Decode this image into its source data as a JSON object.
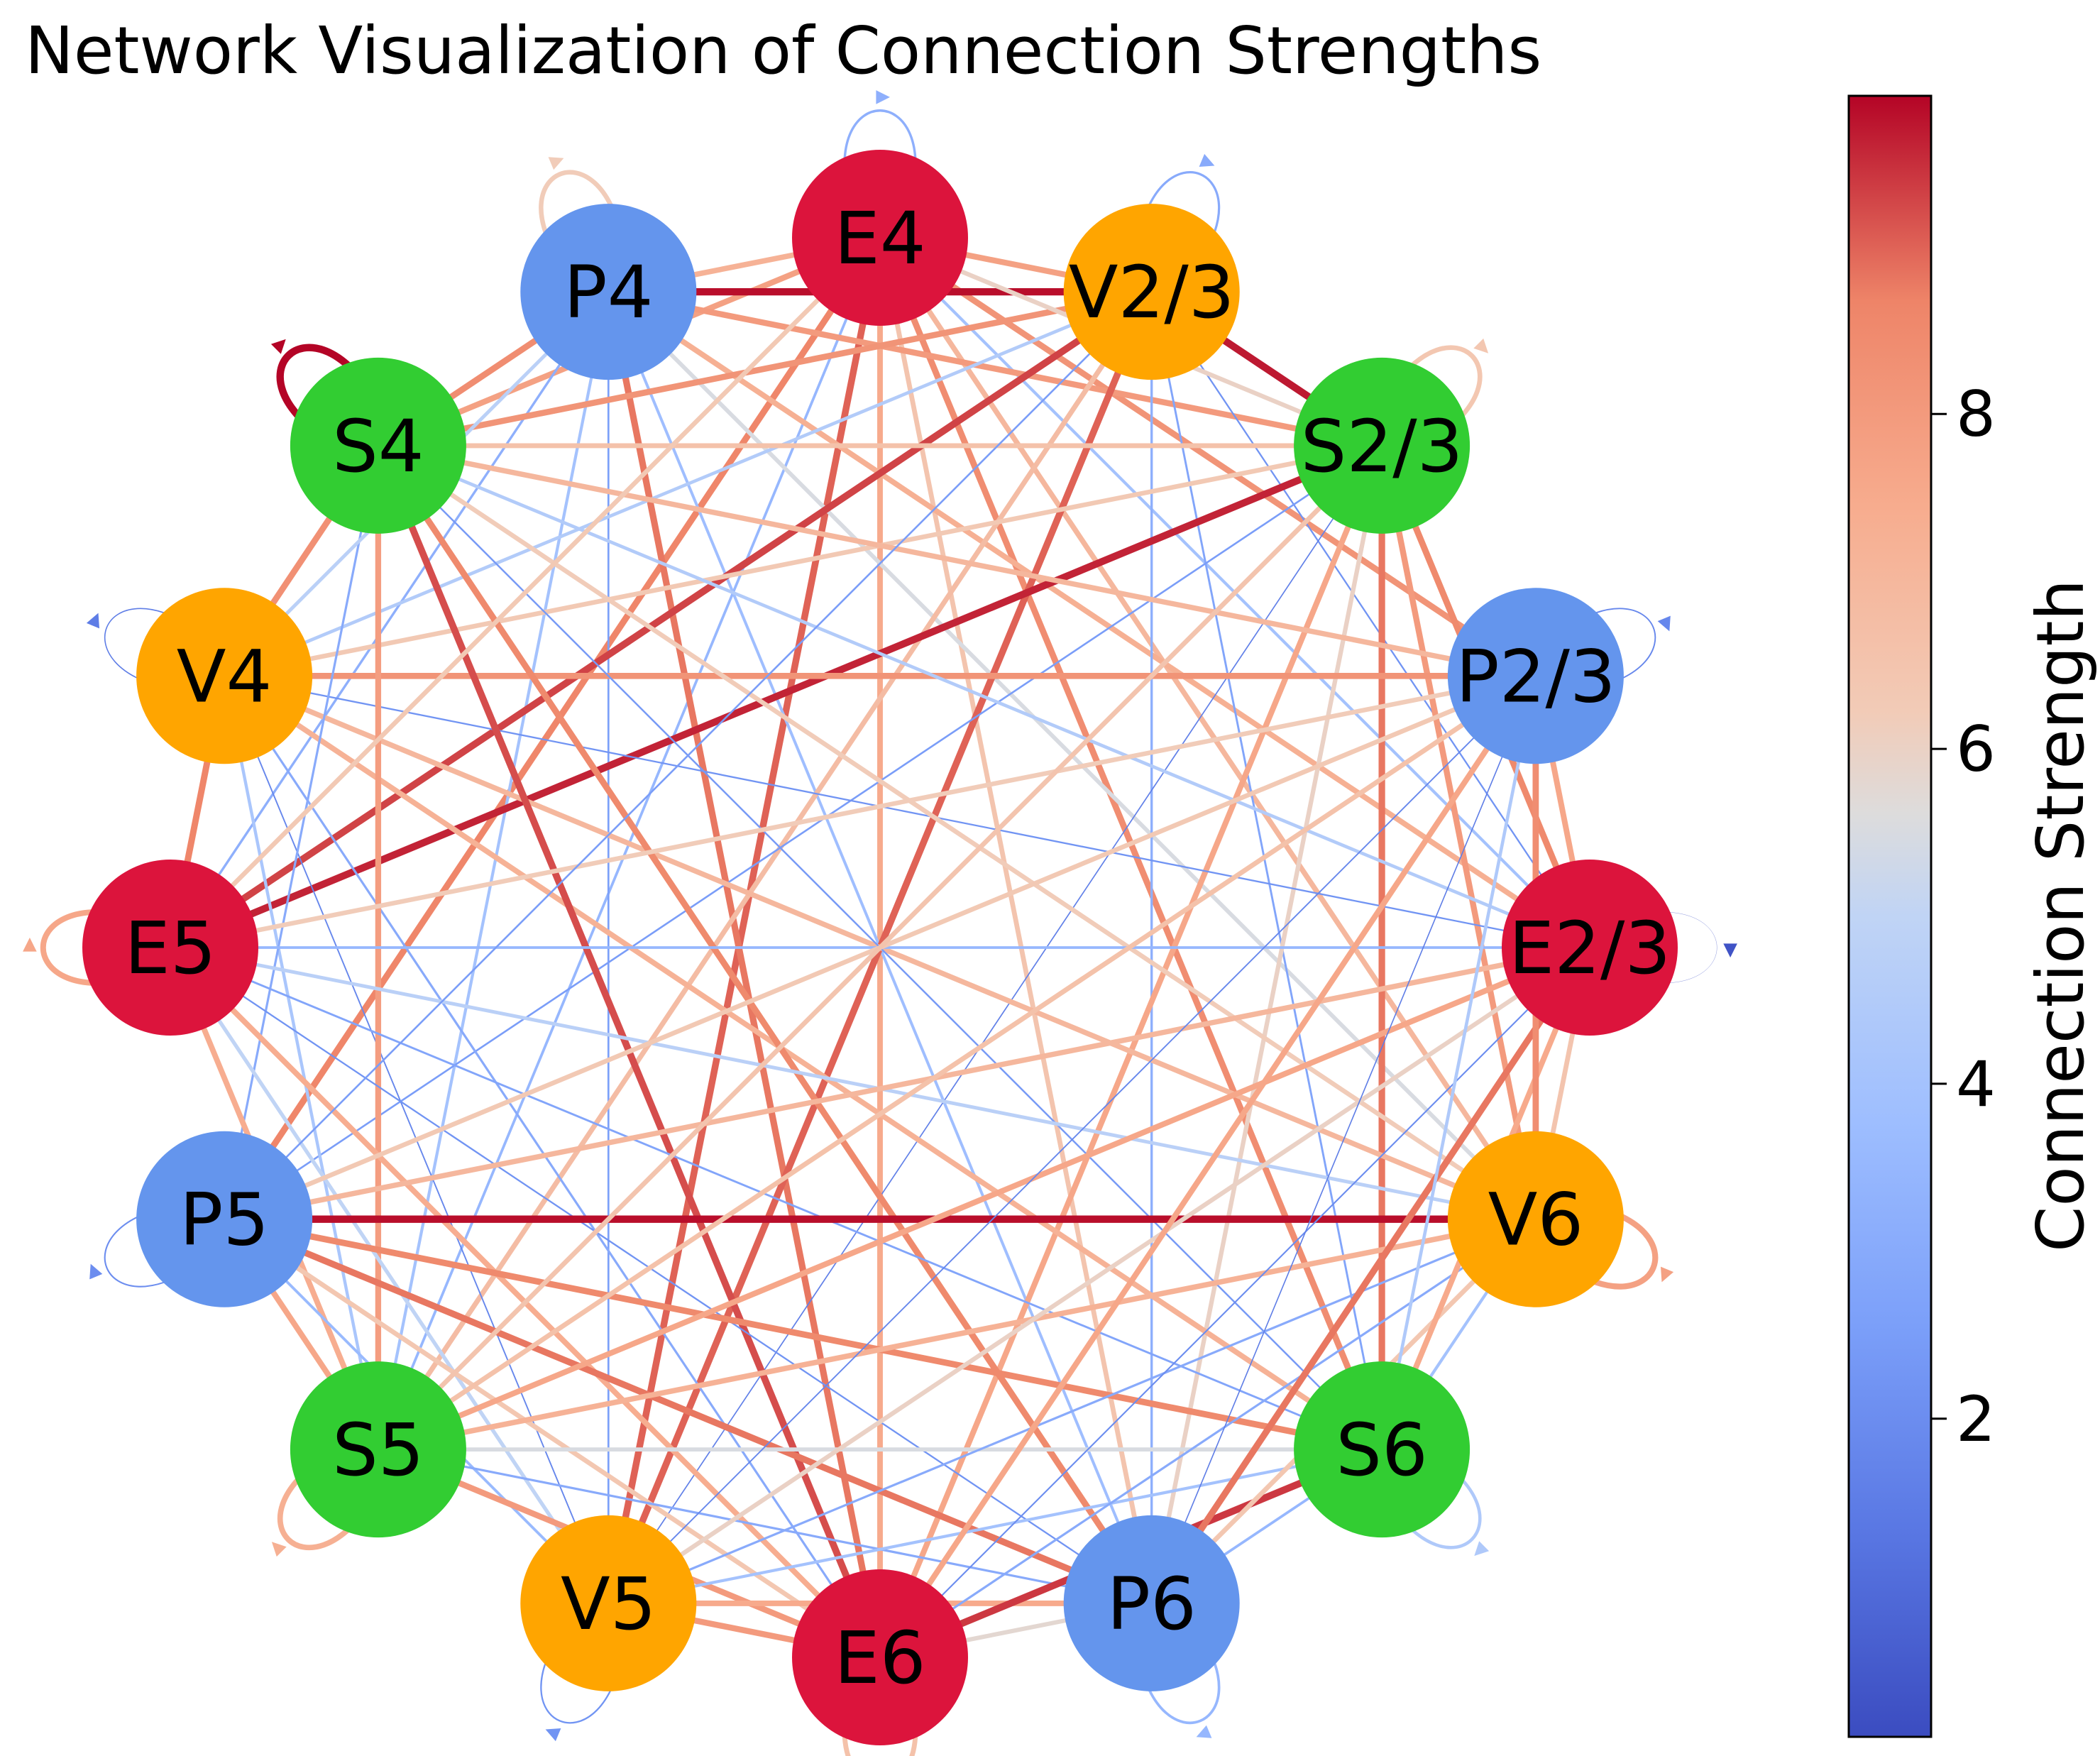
{
  "title": "Network Visualization of Connection Strengths",
  "colorbar": {
    "label": "Connection Strength",
    "min": 0.1,
    "max": 9.9,
    "ticks": [
      2,
      4,
      6,
      8
    ],
    "tick_labels": [
      "2",
      "4",
      "6",
      "8"
    ],
    "colormap": "coolwarm"
  },
  "colors": {
    "E": "#dc143c",
    "P": "#6495ed",
    "V": "#ffa500",
    "S": "#32cd32"
  },
  "nodes": [
    {
      "label": "E4",
      "type": "E"
    },
    {
      "label": "V2/3",
      "type": "V"
    },
    {
      "label": "S2/3",
      "type": "S"
    },
    {
      "label": "P2/3",
      "type": "P"
    },
    {
      "label": "E2/3",
      "type": "E"
    },
    {
      "label": "V6",
      "type": "V"
    },
    {
      "label": "S6",
      "type": "S"
    },
    {
      "label": "P6",
      "type": "P"
    },
    {
      "label": "E6",
      "type": "E"
    },
    {
      "label": "V5",
      "type": "V"
    },
    {
      "label": "S5",
      "type": "S"
    },
    {
      "label": "P5",
      "type": "P"
    },
    {
      "label": "E5",
      "type": "E"
    },
    {
      "label": "V4",
      "type": "V"
    },
    {
      "label": "S4",
      "type": "S"
    },
    {
      "label": "P4",
      "type": "P"
    }
  ],
  "edges": [
    {
      "source": "E4",
      "target": "E6",
      "weight": 7.5
    },
    {
      "source": "E4",
      "target": "V5",
      "weight": 9.0
    },
    {
      "source": "E4",
      "target": "P5",
      "weight": 8.6
    },
    {
      "source": "E4",
      "target": "S6",
      "weight": 8.4
    },
    {
      "source": "E4",
      "target": "V6",
      "weight": 7.0
    },
    {
      "source": "E4",
      "target": "S4",
      "weight": 7.8
    },
    {
      "source": "E4",
      "target": "P4",
      "weight": 7.2
    },
    {
      "source": "E4",
      "target": "V2/3",
      "weight": 7.8
    },
    {
      "source": "E4",
      "target": "P2/3",
      "weight": 8.2
    },
    {
      "source": "E4",
      "target": "P6",
      "weight": 6.5
    },
    {
      "source": "E4",
      "target": "E2/3",
      "weight": 4.0
    },
    {
      "source": "E4",
      "target": "S5",
      "weight": 3.5
    },
    {
      "source": "P4",
      "target": "V2/3",
      "weight": 9.8
    },
    {
      "source": "P4",
      "target": "S4",
      "weight": 8.4
    },
    {
      "source": "P4",
      "target": "E6",
      "weight": 8.8
    },
    {
      "source": "P4",
      "target": "V5",
      "weight": 2.6
    },
    {
      "source": "P4",
      "target": "S2/3",
      "weight": 8.0
    },
    {
      "source": "P4",
      "target": "E2/3",
      "weight": 7.3
    },
    {
      "source": "P4",
      "target": "V6",
      "weight": 5.5
    },
    {
      "source": "P4",
      "target": "S5",
      "weight": 4.0
    },
    {
      "source": "P4",
      "target": "E5",
      "weight": 3.2
    },
    {
      "source": "P4",
      "target": "P6",
      "weight": 3.8
    },
    {
      "source": "V2/3",
      "target": "S2/3",
      "weight": 9.7
    },
    {
      "source": "V2/3",
      "target": "E5",
      "weight": 9.3
    },
    {
      "source": "V2/3",
      "target": "V5",
      "weight": 9.0
    },
    {
      "source": "V2/3",
      "target": "S4",
      "weight": 8.2
    },
    {
      "source": "V2/3",
      "target": "S5",
      "weight": 6.8
    },
    {
      "source": "V2/3",
      "target": "P6",
      "weight": 3.2
    },
    {
      "source": "V2/3",
      "target": "V4",
      "weight": 4.5
    },
    {
      "source": "V2/3",
      "target": "S6",
      "weight": 2.8
    },
    {
      "source": "V2/3",
      "target": "E2/3",
      "weight": 2.2
    },
    {
      "source": "S2/3",
      "target": "E5",
      "weight": 9.6
    },
    {
      "source": "S2/3",
      "target": "S6",
      "weight": 8.8
    },
    {
      "source": "S2/3",
      "target": "S4",
      "weight": 6.6
    },
    {
      "source": "S2/3",
      "target": "V4",
      "weight": 6.3
    },
    {
      "source": "S2/3",
      "target": "E6",
      "weight": 7.6
    },
    {
      "source": "S2/3",
      "target": "P5",
      "weight": 2.5
    },
    {
      "source": "S2/3",
      "target": "V5",
      "weight": 1.6
    },
    {
      "source": "S2/3",
      "target": "P6",
      "weight": 6.0
    },
    {
      "source": "S2/3",
      "target": "V6",
      "weight": 8.0
    },
    {
      "source": "S2/3",
      "target": "E2/3",
      "weight": 8.5
    },
    {
      "source": "V4",
      "target": "P2/3",
      "weight": 8.2
    },
    {
      "source": "V4",
      "target": "S5",
      "weight": 4.2
    },
    {
      "source": "V4",
      "target": "E6",
      "weight": 3.0
    },
    {
      "source": "V4",
      "target": "V6",
      "weight": 7.0
    },
    {
      "source": "V4",
      "target": "S6",
      "weight": 7.2
    },
    {
      "source": "V4",
      "target": "E2/3",
      "weight": 2.2
    },
    {
      "source": "V4",
      "target": "E5",
      "weight": 8.6
    },
    {
      "source": "V4",
      "target": "V5",
      "weight": 1.8
    },
    {
      "source": "V4",
      "target": "S4",
      "weight": 8.3
    },
    {
      "source": "S4",
      "target": "E6",
      "weight": 9.2
    },
    {
      "source": "S4",
      "target": "S5",
      "weight": 7.9
    },
    {
      "source": "S4",
      "target": "P2/3",
      "weight": 7.0
    },
    {
      "source": "S4",
      "target": "P6",
      "weight": 8.5
    },
    {
      "source": "S4",
      "target": "E2/3",
      "weight": 4.5
    },
    {
      "source": "S4",
      "target": "V6",
      "weight": 6.2
    },
    {
      "source": "S4",
      "target": "S6",
      "weight": 2.4
    },
    {
      "source": "S4",
      "target": "P5",
      "weight": 3.0
    },
    {
      "source": "E5",
      "target": "E2/3",
      "weight": 3.5
    },
    {
      "source": "E5",
      "target": "P2/3",
      "weight": 6.2
    },
    {
      "source": "E5",
      "target": "V6",
      "weight": 4.8
    },
    {
      "source": "E5",
      "target": "P6",
      "weight": 2.2
    },
    {
      "source": "E5",
      "target": "E6",
      "weight": 7.4
    },
    {
      "source": "E5",
      "target": "V5",
      "weight": 5.0
    },
    {
      "source": "E5",
      "target": "S5",
      "weight": 7.4
    },
    {
      "source": "E5",
      "target": "S6",
      "weight": 2.8
    },
    {
      "source": "P5",
      "target": "V6",
      "weight": 9.8
    },
    {
      "source": "P5",
      "target": "P6",
      "weight": 8.8
    },
    {
      "source": "P5",
      "target": "S6",
      "weight": 8.5
    },
    {
      "source": "P5",
      "target": "E2/3",
      "weight": 7.0
    },
    {
      "source": "P5",
      "target": "P2/3",
      "weight": 6.3
    },
    {
      "source": "P5",
      "target": "S5",
      "weight": 7.6
    },
    {
      "source": "P5",
      "target": "E6",
      "weight": 6.4
    },
    {
      "source": "P5",
      "target": "V5",
      "weight": 3.6
    },
    {
      "source": "S5",
      "target": "V6",
      "weight": 7.2
    },
    {
      "source": "S5",
      "target": "S6",
      "weight": 5.5
    },
    {
      "source": "S5",
      "target": "E2/3",
      "weight": 7.6
    },
    {
      "source": "S5",
      "target": "P2/3",
      "weight": 6.6
    },
    {
      "source": "S5",
      "target": "P6",
      "weight": 3.0
    },
    {
      "source": "S5",
      "target": "E6",
      "weight": 8.0
    },
    {
      "source": "V5",
      "target": "E6",
      "weight": 8.0
    },
    {
      "source": "V5",
      "target": "P6",
      "weight": 7.5
    },
    {
      "source": "V5",
      "target": "E2/3",
      "weight": 6.0
    },
    {
      "source": "V5",
      "target": "S6",
      "weight": 4.0
    },
    {
      "source": "V5",
      "target": "P2/3",
      "weight": 1.8
    },
    {
      "source": "V5",
      "target": "V6",
      "weight": 3.0
    },
    {
      "source": "E6",
      "target": "P6",
      "weight": 5.8
    },
    {
      "source": "E6",
      "target": "S6",
      "weight": 9.4
    },
    {
      "source": "E6",
      "target": "V6",
      "weight": 3.0
    },
    {
      "source": "E6",
      "target": "E2/3",
      "weight": 2.0
    },
    {
      "source": "E6",
      "target": "P2/3",
      "weight": 7.6
    },
    {
      "source": "P6",
      "target": "S6",
      "weight": 3.5
    },
    {
      "source": "P6",
      "target": "E2/3",
      "weight": 8.8
    },
    {
      "source": "P6",
      "target": "V6",
      "weight": 6.4
    },
    {
      "source": "P6",
      "target": "P2/3",
      "weight": 1.5
    },
    {
      "source": "S6",
      "target": "V6",
      "weight": 4.0
    },
    {
      "source": "S6",
      "target": "E2/3",
      "weight": 7.5
    },
    {
      "source": "S6",
      "target": "P2/3",
      "weight": 3.0
    },
    {
      "source": "V6",
      "target": "E2/3",
      "weight": 6.5
    },
    {
      "source": "V6",
      "target": "P2/3",
      "weight": 8.4
    },
    {
      "source": "E2/3",
      "target": "P2/3",
      "weight": 7.6
    },
    {
      "source": "P4",
      "target": "V4",
      "weight": 4.8
    },
    {
      "source": "E4",
      "target": "E5",
      "weight": 6.3
    },
    {
      "source": "E4",
      "target": "S2/3",
      "weight": 6.0
    },
    {
      "source": "V2/3",
      "target": "P5",
      "weight": 2.5
    },
    {
      "source": "S2/3",
      "target": "S5",
      "weight": 6.5
    },
    {
      "source": "P2/3",
      "target": "S6",
      "weight": 4.4
    }
  ],
  "self_loops": [
    {
      "node": "E4",
      "weight": 3.2
    },
    {
      "node": "P4",
      "weight": 6.2
    },
    {
      "node": "V2/3",
      "weight": 3.0
    },
    {
      "node": "S4",
      "weight": 9.9
    },
    {
      "node": "S2/3",
      "weight": 6.4
    },
    {
      "node": "V4",
      "weight": 1.5
    },
    {
      "node": "P2/3",
      "weight": 1.8
    },
    {
      "node": "E2/3",
      "weight": 0.3
    },
    {
      "node": "E5",
      "weight": 7.6
    },
    {
      "node": "P5",
      "weight": 2.0
    },
    {
      "node": "V6",
      "weight": 7.8
    },
    {
      "node": "S5",
      "weight": 7.3
    },
    {
      "node": "V5",
      "weight": 2.2
    },
    {
      "node": "E6",
      "weight": 6.6
    },
    {
      "node": "P6",
      "weight": 3.5
    },
    {
      "node": "S6",
      "weight": 4.4
    }
  ]
}
